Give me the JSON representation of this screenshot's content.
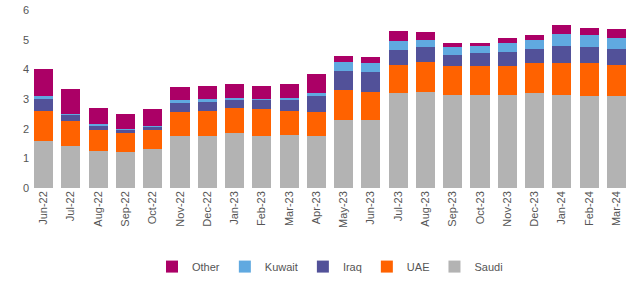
{
  "chart_data": {
    "type": "bar",
    "stacked": true,
    "grid": false,
    "legend": "bottom",
    "categories": [
      "Jun-22",
      "Jul-22",
      "Aug-22",
      "Sep-22",
      "Oct-22",
      "Nov-22",
      "Dec-22",
      "Jan-23",
      "Feb-23",
      "Mar-23",
      "Apr-23",
      "May-23",
      "Jun-23",
      "Jul-23",
      "Aug-23",
      "Sep-23",
      "Oct-23",
      "Nov-23",
      "Dec-23",
      "Jan-24",
      "Feb-24",
      "Mar-24"
    ],
    "ylim": [
      0,
      6
    ],
    "yticks": [
      0,
      1,
      2,
      3,
      4,
      5,
      6
    ],
    "series": [
      {
        "name": "Saudi",
        "color": "#b3b3b3",
        "values": [
          1.6,
          1.4,
          1.25,
          1.2,
          1.3,
          1.75,
          1.75,
          1.85,
          1.75,
          1.8,
          1.75,
          2.3,
          2.3,
          3.2,
          3.25,
          3.15,
          3.15,
          3.15,
          3.2,
          3.15,
          3.1,
          3.1
        ]
      },
      {
        "name": "UAE",
        "color": "#ff6200",
        "values": [
          1.0,
          0.85,
          0.7,
          0.65,
          0.65,
          0.8,
          0.85,
          0.85,
          0.9,
          0.8,
          0.8,
          1.0,
          0.95,
          0.95,
          1.0,
          0.95,
          0.95,
          0.95,
          1.0,
          1.05,
          1.1,
          1.05
        ]
      },
      {
        "name": "Iraq",
        "color": "#525199",
        "values": [
          0.4,
          0.2,
          0.15,
          0.1,
          0.1,
          0.3,
          0.3,
          0.25,
          0.3,
          0.35,
          0.55,
          0.65,
          0.65,
          0.5,
          0.5,
          0.4,
          0.45,
          0.5,
          0.5,
          0.6,
          0.55,
          0.55
        ]
      },
      {
        "name": "Kuwait",
        "color": "#60a9e0",
        "values": [
          0.1,
          0.05,
          0.05,
          0.05,
          0.05,
          0.1,
          0.1,
          0.1,
          0.05,
          0.1,
          0.1,
          0.3,
          0.3,
          0.3,
          0.25,
          0.25,
          0.25,
          0.3,
          0.3,
          0.4,
          0.4,
          0.35
        ]
      },
      {
        "name": "Other",
        "color": "#ab0066",
        "values": [
          0.9,
          0.85,
          0.55,
          0.5,
          0.55,
          0.45,
          0.45,
          0.45,
          0.45,
          0.45,
          0.65,
          0.2,
          0.2,
          0.35,
          0.25,
          0.15,
          0.1,
          0.15,
          0.15,
          0.3,
          0.25,
          0.3
        ]
      }
    ]
  }
}
